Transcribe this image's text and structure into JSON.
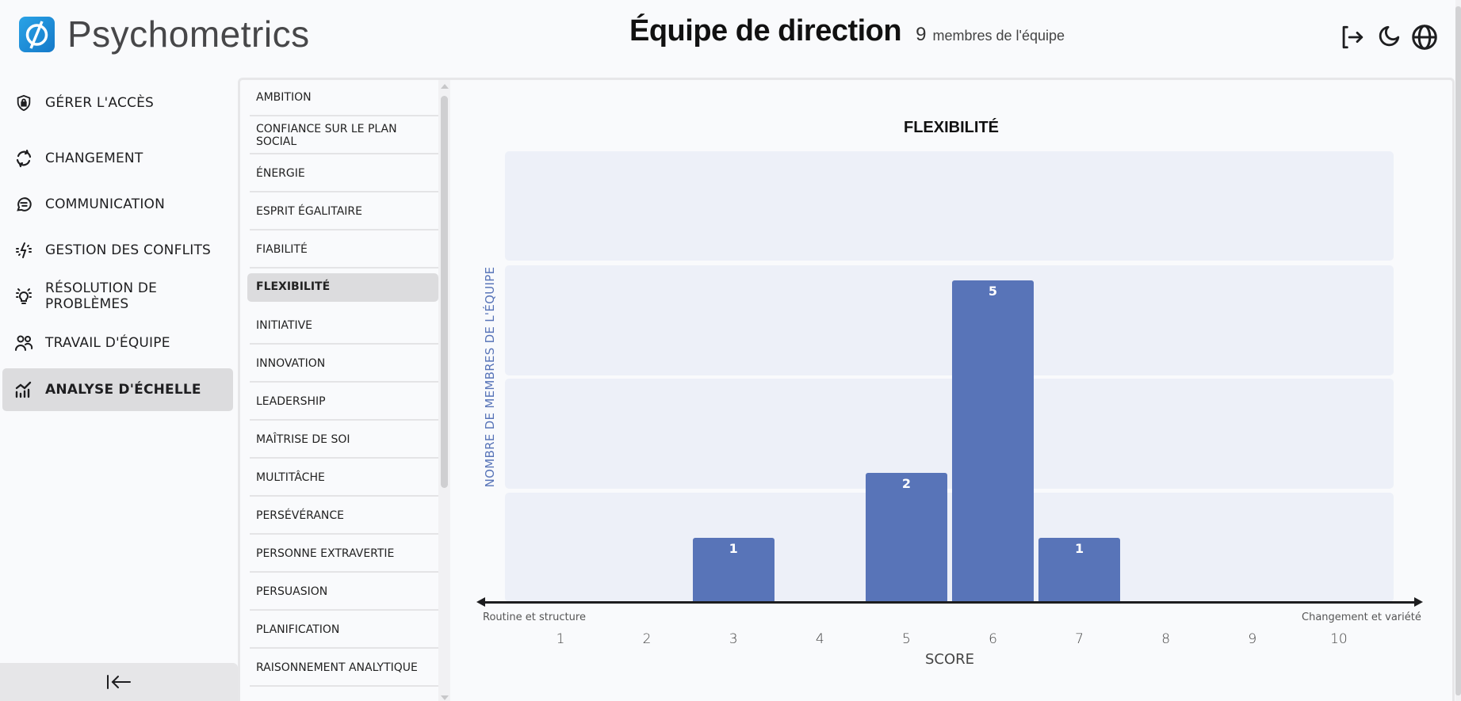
{
  "header": {
    "app_name": "Psychometrics",
    "team_title": "Équipe de direction",
    "member_count": "9",
    "member_label": "membres de l'équipe",
    "icons": [
      "logout-icon",
      "moon-icon",
      "globe-icon"
    ]
  },
  "sidebar": {
    "items": [
      {
        "label": "GÉRER L'ACCÈS",
        "icon": "shield-lock-icon",
        "active": false
      },
      {
        "label": "CHANGEMENT",
        "icon": "refresh-cycle-icon",
        "active": false
      },
      {
        "label": "COMMUNICATION",
        "icon": "message-icon",
        "active": false
      },
      {
        "label": "GESTION DES CONFLITS",
        "icon": "bolt-icon",
        "active": false
      },
      {
        "label": "RÉSOLUTION DE PROBLÈMES",
        "icon": "bulb-icon",
        "active": false
      },
      {
        "label": "TRAVAIL D'ÉQUIPE",
        "icon": "users-icon",
        "active": false
      },
      {
        "label": "ANALYSE D'ÉCHELLE",
        "icon": "chart-icon",
        "active": true
      }
    ],
    "collapse_icon": "collapse-left-icon"
  },
  "scales": {
    "items": [
      "AMBITION",
      "CONFIANCE SUR LE PLAN SOCIAL",
      "ÉNERGIE",
      "ESPRIT ÉGALITAIRE",
      "FIABILITÉ",
      "FLEXIBILITÉ",
      "INITIATIVE",
      "INNOVATION",
      "LEADERSHIP",
      "MAÎTRISE DE SOI",
      "MULTITÂCHE",
      "PERSÉVÉRANCE",
      "PERSONNE EXTRAVERTIE",
      "PERSUASION",
      "PLANIFICATION",
      "RAISONNEMENT ANALYTIQUE"
    ],
    "selected": "FLEXIBILITÉ"
  },
  "colors": {
    "bar": "#5874b8",
    "band": "#edf0f8",
    "active_bg": "#dcdcde"
  },
  "chart_data": {
    "type": "bar",
    "title": "FLEXIBILITÉ",
    "xlabel": "SCORE",
    "ylabel": "NOMBRE DE MEMBRES DE L'ÉQUIPE",
    "left_anchor": "Routine et structure",
    "right_anchor": "Changement et variété",
    "categories": [
      "1",
      "2",
      "3",
      "4",
      "5",
      "6",
      "7",
      "8",
      "9",
      "10"
    ],
    "values": [
      0,
      0,
      1,
      0,
      2,
      5,
      1,
      0,
      0,
      0
    ],
    "ylim": [
      0,
      7
    ],
    "grid": true,
    "legend": null
  }
}
